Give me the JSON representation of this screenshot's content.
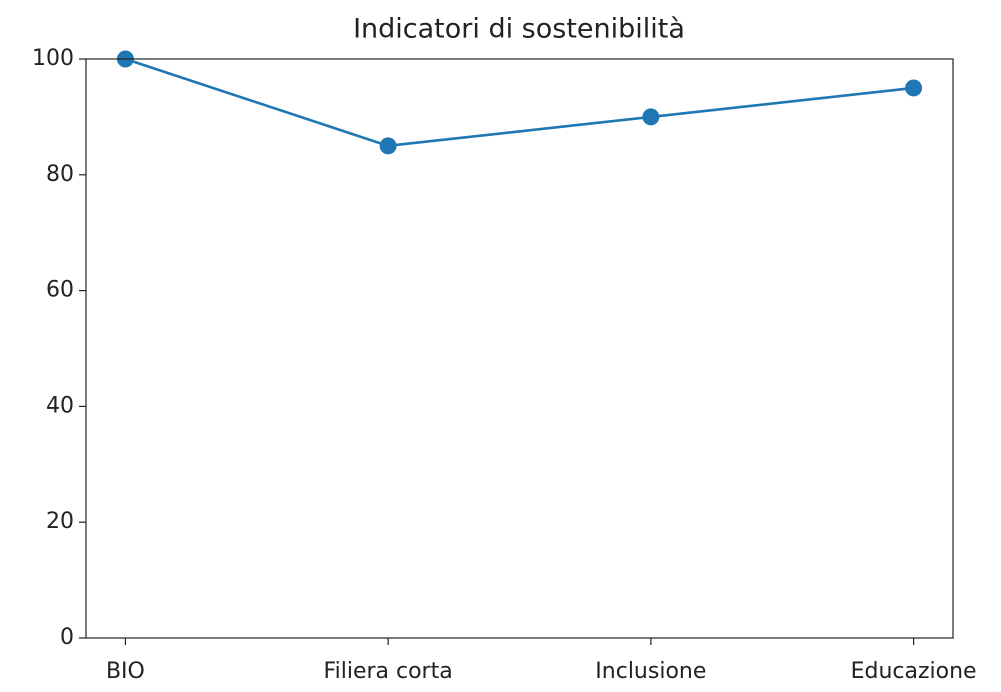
{
  "chart_data": {
    "type": "line",
    "title": "Indicatori di sostenibilità",
    "categories": [
      "BIO",
      "Filiera corta",
      "Inclusione",
      "Educazione"
    ],
    "values": [
      100,
      85,
      90,
      95
    ],
    "color": "#1f77b4",
    "ylim": [
      0,
      100
    ],
    "yticks": [
      0,
      20,
      40,
      60,
      80,
      100
    ],
    "grid": false
  }
}
